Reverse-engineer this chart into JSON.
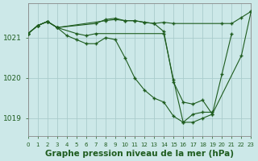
{
  "background_color": "#cce8e8",
  "grid_color": "#aacccc",
  "line_color": "#1e5c1e",
  "xlabel": "Graphe pression niveau de la mer (hPa)",
  "xlabel_fontsize": 7.5,
  "xlim": [
    0,
    23
  ],
  "ylim": [
    1018.55,
    1021.85
  ],
  "yticks": [
    1019.0,
    1020.0,
    1021.0
  ],
  "xtick_positions": [
    0,
    1,
    2,
    3,
    4,
    5,
    6,
    7,
    8,
    9,
    10,
    11,
    12,
    13,
    14,
    15,
    16,
    17,
    18,
    19,
    20,
    21,
    22,
    23
  ],
  "xtick_labels": [
    "0",
    "1",
    "2",
    "3",
    "4",
    "5",
    "6",
    "7",
    "8",
    "9",
    "10",
    "11",
    "12",
    "13",
    "14",
    "15",
    "16",
    "17",
    "18",
    "19",
    "20",
    "21",
    "22",
    "23"
  ],
  "series": [
    {
      "x": [
        0,
        1,
        2,
        3,
        7,
        8,
        9,
        10,
        11,
        12,
        13,
        14,
        15,
        20,
        21,
        22,
        23
      ],
      "y": [
        1021.1,
        1021.3,
        1021.4,
        1021.25,
        1021.35,
        1021.45,
        1021.48,
        1021.42,
        1021.42,
        1021.38,
        1021.35,
        1021.38,
        1021.35,
        1021.35,
        1021.35,
        1021.5,
        1021.65
      ]
    },
    {
      "x": [
        0,
        1,
        2,
        3,
        5,
        6,
        7,
        14,
        15,
        16,
        17,
        18,
        19,
        22,
        23
      ],
      "y": [
        1021.1,
        1021.3,
        1021.4,
        1021.25,
        1021.1,
        1021.05,
        1021.1,
        1021.1,
        1019.95,
        1018.9,
        1018.9,
        1019.0,
        1019.1,
        1020.55,
        1021.65
      ]
    },
    {
      "x": [
        0,
        1,
        2,
        3,
        4,
        5,
        6,
        7,
        8,
        9,
        10,
        11,
        12,
        13,
        14,
        15,
        16,
        17,
        18,
        19
      ],
      "y": [
        1021.1,
        1021.3,
        1021.4,
        1021.25,
        1021.05,
        1020.95,
        1020.85,
        1020.85,
        1021.0,
        1020.95,
        1020.5,
        1020.0,
        1019.7,
        1019.5,
        1019.4,
        1019.05,
        1018.9,
        1019.1,
        1019.15,
        1019.15
      ]
    },
    {
      "x": [
        0,
        1,
        2,
        3,
        8,
        9,
        10,
        11,
        12,
        13,
        14,
        15,
        16,
        17,
        18,
        19,
        20,
        21
      ],
      "y": [
        1021.1,
        1021.3,
        1021.4,
        1021.25,
        1021.42,
        1021.45,
        1021.42,
        1021.42,
        1021.38,
        1021.35,
        1021.15,
        1019.9,
        1019.4,
        1019.35,
        1019.45,
        1019.1,
        1020.1,
        1021.1
      ]
    }
  ]
}
